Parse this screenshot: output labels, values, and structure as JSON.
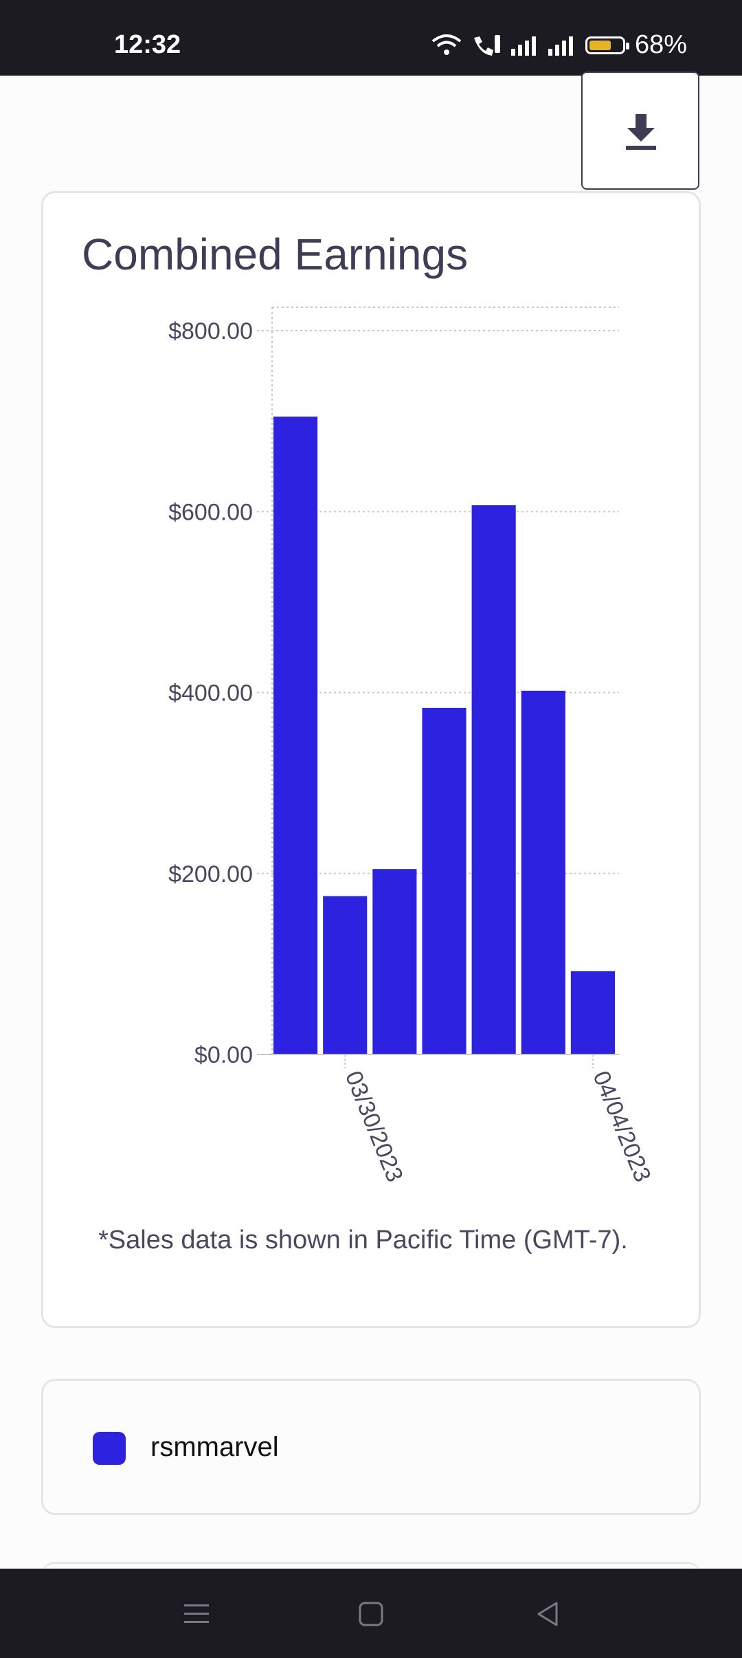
{
  "status_bar": {
    "time": "12:32",
    "battery": "68%",
    "battery_level": 0.68
  },
  "download": {
    "icon": "download-icon"
  },
  "chart_card": {
    "title": "Combined Earnings",
    "footnote": "*Sales data is shown in Pacific Time (GMT-7)."
  },
  "legend": {
    "label": "rsmmarvel",
    "color": "#2c22e0"
  },
  "colors": {
    "bar": "#2c22e0",
    "text": "#3f3d56",
    "grid": "#c8c8cc"
  },
  "chart_data": {
    "type": "bar",
    "title": "Combined Earnings",
    "categories": [
      "",
      "03/30/2023",
      "",
      "",
      "",
      "",
      "04/04/2023"
    ],
    "series": [
      {
        "name": "rsmmarvel",
        "values": [
          705,
          175,
          205,
          383,
          607,
          402,
          92
        ]
      }
    ],
    "ylim": [
      0,
      800
    ],
    "yticks": [
      0,
      200,
      400,
      600,
      800
    ],
    "ytick_labels": [
      "$0.00",
      "$200.00",
      "$400.00",
      "$600.00",
      "$800.00"
    ],
    "xtick_labels": [
      "03/30/2023",
      "04/04/2023"
    ],
    "xlabel": "",
    "ylabel": "",
    "grid": true
  },
  "nav": {
    "items": [
      "menu-icon",
      "home-icon",
      "back-icon"
    ]
  }
}
